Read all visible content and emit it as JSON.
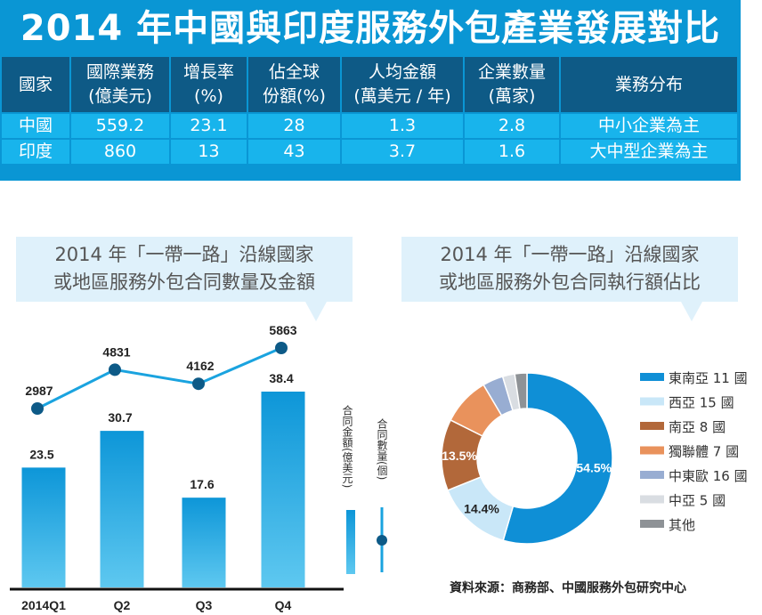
{
  "title": "2014 年中國與印度服務外包產業發展對比",
  "table": {
    "headers": [
      [
        "國家"
      ],
      [
        "國際業務",
        "(億美元)"
      ],
      [
        "增長率",
        "(%)"
      ],
      [
        "佔全球",
        "份額(%)"
      ],
      [
        "人均金額",
        "(萬美元 / 年)"
      ],
      [
        "企業數量",
        "(萬家)"
      ],
      [
        "業務分布"
      ]
    ],
    "rows": [
      [
        "中國",
        "559.2",
        "23.1",
        "28",
        "1.3",
        "2.8",
        "中小企業為主"
      ],
      [
        "印度",
        "860",
        "13",
        "43",
        "3.7",
        "1.6",
        "大中型企業為主"
      ]
    ]
  },
  "bar_chart_title": [
    "2014 年「一帶一路」沿線國家",
    "或地區服務外包合同數量及金額"
  ],
  "pie_chart_title": [
    "2014 年「一帶一路」沿線國家",
    "或地區服務外包合同執行額佔比"
  ],
  "source": "資料來源：商務部、中國服務外包研究中心",
  "colors": {
    "header_bg": "#0e5a86",
    "title_bg": "#0a96d4",
    "cell_bg": "#18b4ec",
    "bar_top": "#0d96d8",
    "bar_bottom": "#5ec8f0",
    "line": "#1aa3df",
    "marker": "#0d5a87"
  },
  "chart_data": [
    {
      "type": "bar",
      "title": "2014 年「一帶一路」沿線國家或地區服務外包合同數量及金額",
      "categories": [
        "2014Q1",
        "Q2",
        "Q3",
        "Q4"
      ],
      "series": [
        {
          "name": "合同金額(億美元)",
          "kind": "bar",
          "values": [
            23.5,
            30.7,
            17.6,
            38.4
          ],
          "labels": [
            "23.5",
            "30.7",
            "17.6",
            "38.4"
          ]
        },
        {
          "name": "合同數量(個)",
          "kind": "line",
          "values": [
            2987,
            4831,
            4162,
            5863
          ],
          "labels": [
            "2987",
            "4831",
            "4162",
            "5863"
          ]
        }
      ],
      "bar_ylim": [
        0,
        45
      ],
      "line_ylim": [
        0,
        6500
      ],
      "legend": [
        "合同金額(億美元)",
        "合同數量(個)"
      ],
      "legend_position": "right"
    },
    {
      "type": "pie",
      "donut": true,
      "title": "2014 年「一帶一路」沿線國家或地區服務外包合同執行額佔比",
      "slices": [
        {
          "label": "東南亞 11 國",
          "value": 54.5,
          "color": "#0f8fd6",
          "text": "54.5%",
          "text_color": "#ffffff"
        },
        {
          "label": "西亞 15 國",
          "value": 14.4,
          "color": "#c9e7f8",
          "text": "14.4%",
          "text_color": "#222222"
        },
        {
          "label": "南亞 8 國",
          "value": 13.5,
          "color": "#b2683a",
          "text": "13.5%",
          "text_color": "#ffffff"
        },
        {
          "label": "獨聯體 7 國",
          "value": 9.1,
          "color": "#e9925c",
          "text": "",
          "text_color": "#ffffff"
        },
        {
          "label": "中東歐 16 國",
          "value": 3.9,
          "color": "#98add2",
          "text": "",
          "text_color": "#ffffff"
        },
        {
          "label": "中亞 5 國",
          "value": 2.3,
          "color": "#d9dde2",
          "text": "",
          "text_color": "#ffffff"
        },
        {
          "label": "其他",
          "value": 2.3,
          "color": "#8e9296",
          "text": "",
          "text_color": "#ffffff"
        }
      ],
      "legend_position": "right"
    }
  ]
}
